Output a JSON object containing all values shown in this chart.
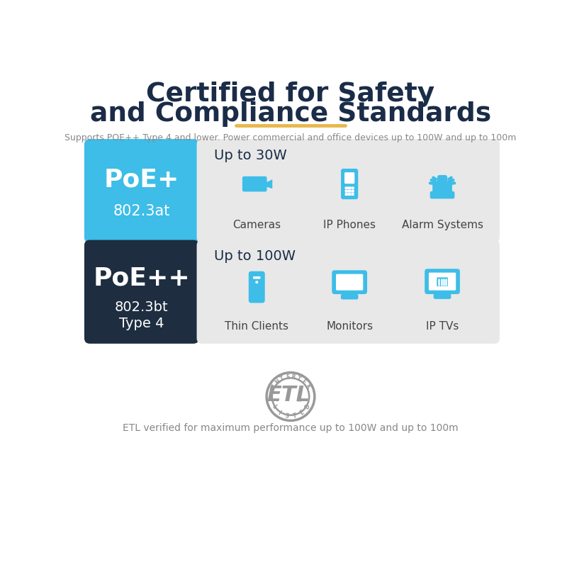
{
  "title_line1": "Certified for Safety",
  "title_line2": "and Compliance Standards",
  "title_color": "#1a2c47",
  "subtitle": "Supports POE++ Type 4 and lower. Power commercial and office devices up to 100W and up to 100m",
  "subtitle_color": "#888888",
  "divider_color": "#e8b84b",
  "poe_plus_label": "PoE+",
  "poe_plus_sub": "802.3at",
  "poe_plus_bg": "#3dbde8",
  "poe_plus_text_color": "#ffffff",
  "poe_plus_power": "Up to 30W",
  "poe_plus_devices": [
    "Cameras",
    "IP Phones",
    "Alarm Systems"
  ],
  "poe_plusplus_label": "PoE++",
  "poe_plusplus_sub1": "802.3bt",
  "poe_plusplus_sub2": "Type 4",
  "poe_plusplus_bg": "#1e2d40",
  "poe_plusplus_text_color": "#ffffff",
  "poe_plusplus_power": "Up to 100W",
  "poe_plusplus_devices": [
    "Thin Clients",
    "Monitors",
    "IP TVs"
  ],
  "right_panel_bg": "#e8e8e8",
  "device_icon_color": "#3dbde8",
  "device_label_color": "#444444",
  "etl_text": "ETL verified for maximum performance up to 100W and up to 100m",
  "etl_color": "#888888",
  "bg_color": "#ffffff"
}
